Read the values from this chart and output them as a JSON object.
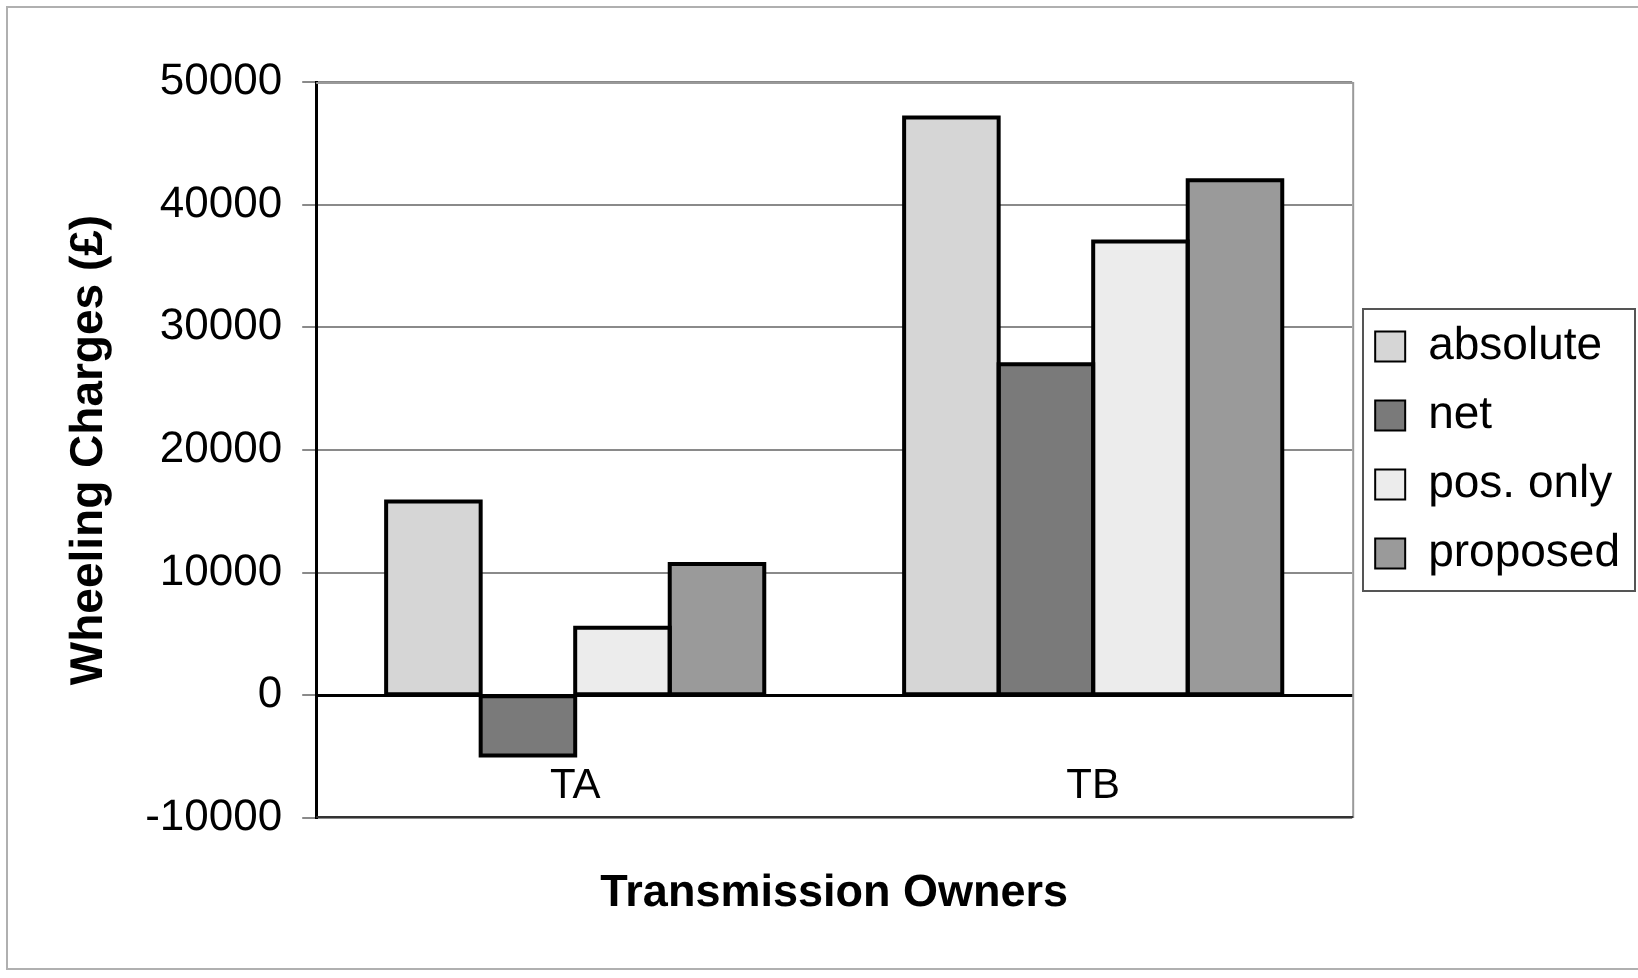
{
  "chart_data": {
    "type": "bar",
    "xlabel": "Transmission Owners",
    "ylabel": "Wheeling Charges (£)",
    "categories": [
      "TA",
      "TB"
    ],
    "series": [
      {
        "name": "absolute",
        "color": "#d6d6d6",
        "values": [
          15800,
          47100
        ]
      },
      {
        "name": "net",
        "color": "#7a7a7a",
        "values": [
          -4900,
          27000
        ]
      },
      {
        "name": "pos. only",
        "color": "#ececec",
        "values": [
          5500,
          37000
        ]
      },
      {
        "name": "proposed",
        "color": "#9a9a9a",
        "values": [
          10700,
          42000
        ]
      }
    ],
    "ylim": [
      -10000,
      50000
    ],
    "yticks": [
      -10000,
      0,
      10000,
      20000,
      30000,
      40000,
      50000
    ],
    "grid": "y",
    "legend": "right"
  }
}
